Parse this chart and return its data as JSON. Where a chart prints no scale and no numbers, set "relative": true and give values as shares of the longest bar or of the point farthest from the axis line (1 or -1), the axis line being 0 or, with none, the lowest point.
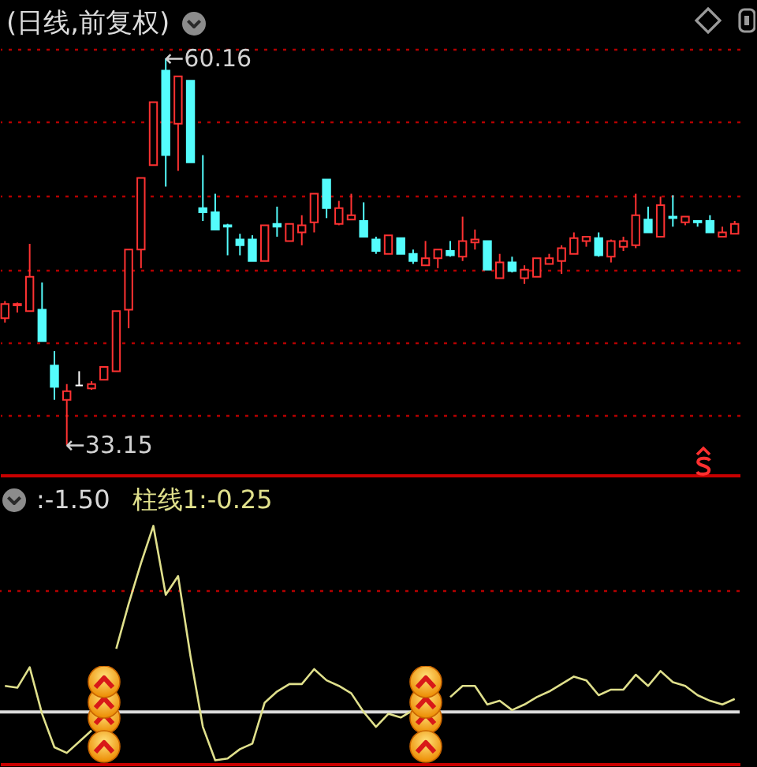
{
  "chart_data": [
    {
      "type": "candlestick",
      "title": "(日线,前复权)",
      "categories": [
        null,
        null,
        null,
        null,
        null,
        null,
        null,
        null,
        null,
        null,
        null,
        null,
        null,
        null,
        null,
        null,
        null,
        null,
        null,
        null,
        null,
        null,
        null,
        null,
        null,
        null,
        null,
        null,
        null,
        null,
        null,
        null,
        null,
        null,
        null,
        null,
        null,
        null,
        null,
        null,
        null,
        null,
        null,
        null,
        null,
        null,
        null,
        null,
        null,
        null,
        null,
        null,
        null,
        null,
        null,
        null,
        null,
        null,
        null,
        null
      ],
      "ohlc": [
        [
          42.0,
          43.2,
          41.7,
          43.0
        ],
        [
          42.9,
          43.1,
          42.4,
          43.0
        ],
        [
          42.5,
          47.2,
          42.5,
          44.9
        ],
        [
          42.6,
          44.5,
          40.4,
          40.4
        ],
        [
          38.7,
          39.7,
          36.3,
          37.2
        ],
        [
          36.3,
          37.4,
          33.15,
          36.9
        ],
        [
          37.3,
          38.3,
          37.3,
          37.3
        ],
        [
          37.1,
          37.6,
          37.0,
          37.4
        ],
        [
          37.7,
          38.6,
          37.7,
          38.6
        ],
        [
          38.3,
          42.5,
          38.3,
          42.5
        ],
        [
          42.6,
          46.8,
          41.3,
          46.8
        ],
        [
          46.8,
          51.8,
          45.5,
          51.8
        ],
        [
          52.7,
          57.1,
          52.7,
          57.1
        ],
        [
          59.3,
          60.16,
          51.2,
          53.4
        ],
        [
          55.6,
          58.9,
          52.3,
          58.9
        ],
        [
          58.6,
          58.6,
          52.9,
          52.9
        ],
        [
          49.7,
          53.4,
          48.8,
          49.4
        ],
        [
          49.4,
          50.7,
          48.2,
          48.2
        ],
        [
          48.5,
          48.6,
          46.4,
          48.4
        ],
        [
          47.5,
          47.9,
          46.4,
          47.1
        ],
        [
          47.5,
          47.8,
          46.0,
          46.0
        ],
        [
          46.0,
          48.5,
          46.0,
          48.5
        ],
        [
          48.6,
          49.8,
          47.7,
          48.4
        ],
        [
          47.4,
          48.6,
          47.4,
          48.6
        ],
        [
          48.0,
          49.2,
          47.1,
          48.5
        ],
        [
          48.7,
          50.7,
          48.0,
          50.7
        ],
        [
          51.7,
          51.7,
          49.0,
          49.7
        ],
        [
          48.6,
          50.2,
          48.5,
          49.7
        ],
        [
          48.9,
          50.7,
          48.9,
          49.2
        ],
        [
          48.8,
          50.1,
          47.7,
          47.7
        ],
        [
          47.5,
          47.7,
          46.5,
          46.7
        ],
        [
          46.5,
          47.8,
          46.5,
          47.8
        ],
        [
          47.6,
          47.6,
          46.5,
          46.5
        ],
        [
          46.5,
          46.8,
          45.8,
          46.0
        ],
        [
          45.7,
          47.4,
          45.7,
          46.2
        ],
        [
          46.2,
          46.8,
          45.5,
          46.8
        ],
        [
          46.7,
          47.4,
          46.3,
          46.4
        ],
        [
          46.3,
          49.1,
          46.0,
          47.4
        ],
        [
          47.3,
          48.2,
          46.8,
          47.5
        ],
        [
          47.4,
          47.4,
          45.4,
          45.4
        ],
        [
          44.8,
          46.5,
          44.8,
          45.9
        ],
        [
          45.9,
          46.3,
          45.2,
          45.3
        ],
        [
          44.8,
          45.7,
          44.4,
          45.4
        ],
        [
          44.9,
          46.2,
          44.9,
          46.2
        ],
        [
          45.8,
          46.5,
          45.8,
          46.2
        ],
        [
          46.0,
          47.1,
          45.1,
          46.9
        ],
        [
          46.5,
          48.0,
          46.5,
          47.6
        ],
        [
          47.4,
          47.7,
          47.0,
          47.7
        ],
        [
          47.6,
          48.0,
          46.3,
          46.4
        ],
        [
          46.3,
          47.5,
          45.9,
          47.4
        ],
        [
          47.0,
          47.7,
          46.7,
          47.4
        ],
        [
          47.1,
          50.7,
          46.9,
          49.2
        ],
        [
          48.9,
          49.8,
          48.0,
          48.0
        ],
        [
          47.7,
          50.5,
          47.7,
          49.9
        ],
        [
          49.1,
          50.6,
          48.4,
          49.0
        ],
        [
          48.7,
          49.1,
          48.5,
          49.1
        ],
        [
          48.8,
          48.8,
          48.4,
          48.7
        ],
        [
          48.8,
          49.2,
          48.0,
          48.0
        ],
        [
          47.7,
          48.4,
          47.7,
          48.0
        ],
        [
          47.9,
          48.8,
          47.9,
          48.6
        ]
      ],
      "colors": [
        "#ff3232",
        "#ff3232",
        "#ff3232",
        "#54fcfc",
        "#54fcfc",
        "#ff3232",
        "#ffffff",
        "#ff3232",
        "#ff3232",
        "#ff3232",
        "#ff3232",
        "#ff3232",
        "#ff3232",
        "#54fcfc",
        "#ff3232",
        "#54fcfc",
        "#54fcfc",
        "#54fcfc",
        "#54fcfc",
        "#54fcfc",
        "#54fcfc",
        "#ff3232",
        "#54fcfc",
        "#ff3232",
        "#ff3232",
        "#ff3232",
        "#54fcfc",
        "#ff3232",
        "#ff3232",
        "#54fcfc",
        "#54fcfc",
        "#ff3232",
        "#54fcfc",
        "#54fcfc",
        "#ff3232",
        "#ff3232",
        "#54fcfc",
        "#ff3232",
        "#ff3232",
        "#54fcfc",
        "#ff3232",
        "#54fcfc",
        "#ff3232",
        "#ff3232",
        "#ff3232",
        "#ff3232",
        "#ff3232",
        "#ff3232",
        "#54fcfc",
        "#ff3232",
        "#ff3232",
        "#ff3232",
        "#54fcfc",
        "#ff3232",
        "#54fcfc",
        "#ff3232",
        "#54fcfc",
        "#54fcfc",
        "#ff3232",
        "#ff3232"
      ],
      "yticks": [
        {
          "value": 35.2,
          "label": null
        },
        {
          "value": 40.3,
          "label": null
        },
        {
          "value": 45.4,
          "label": null
        },
        {
          "value": 50.6,
          "label": null
        },
        {
          "value": 55.7,
          "label": null
        },
        {
          "value": 60.8,
          "label": null
        }
      ],
      "grid": "y",
      "annotations": [
        "←60.16",
        "←33.15"
      ]
    },
    {
      "type": "line",
      "relative": true,
      "categories": [
        null,
        null,
        null,
        null,
        null,
        null,
        null,
        null,
        null,
        null,
        null,
        null,
        null,
        null,
        null,
        null,
        null,
        null,
        null,
        null,
        null,
        null,
        null,
        null,
        null,
        null,
        null,
        null,
        null,
        null,
        null,
        null,
        null,
        null,
        null,
        null,
        null,
        null,
        null,
        null,
        null,
        null,
        null,
        null,
        null,
        null,
        null,
        null,
        null,
        null,
        null,
        null,
        null,
        null,
        null,
        null,
        null,
        null,
        null,
        null
      ],
      "series": [
        {
          "color": "#e0e08c",
          "values": [
            0.14,
            0.13,
            0.24,
            -0.01,
            -0.19,
            -0.22,
            -0.16,
            -0.1,
            null,
            0.34,
            0.58,
            0.8,
            1,
            0.63,
            0.73,
            0.3,
            -0.08,
            -0.26,
            -0.25,
            -0.2,
            -0.17,
            0.05,
            0.11,
            0.15,
            0.15,
            0.23,
            0.17,
            0.14,
            0.1,
            0.0,
            -0.08,
            -0.01,
            -0.03,
            0.01,
            null,
            null,
            0.08,
            0.14,
            0.14,
            0.04,
            0.06,
            0.01,
            0.04,
            0.08,
            0.11,
            0.15,
            0.19,
            0.17,
            0.09,
            0.12,
            0.12,
            0.2,
            0.14,
            0.22,
            0.16,
            0.14,
            0.09,
            0.06,
            0.04,
            0.07
          ]
        }
      ],
      "ref_lines": [
        {
          "axis": "y",
          "value": 0,
          "color": "#dcdcdc"
        },
        {
          "axis": "y",
          "value": 0.65,
          "color": "#b40000",
          "line_style": "dotted"
        }
      ],
      "annotations": [
        ":-1.50",
        "柱线1:-0.25"
      ]
    }
  ]
}
